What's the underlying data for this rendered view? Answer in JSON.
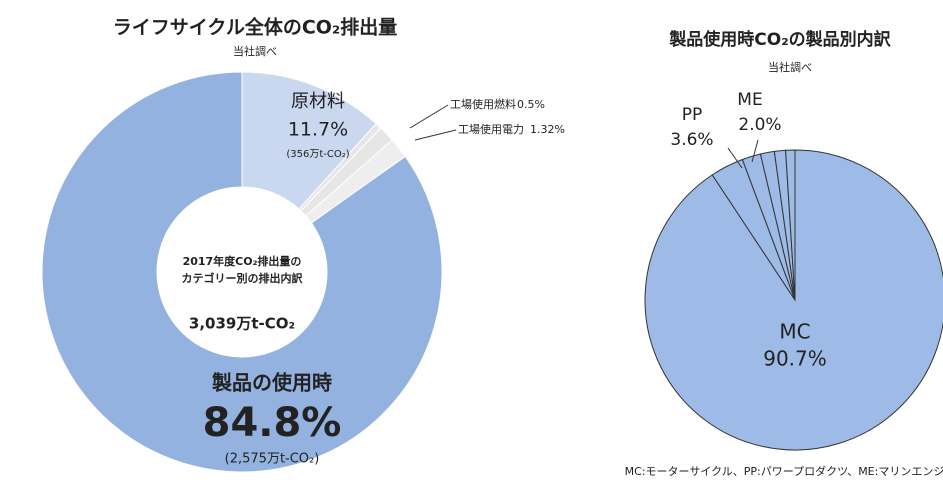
{
  "chart_data": [
    {
      "type": "donut",
      "title": "ライフサイクル全体のCO₂排出量",
      "subtitle": "当社調べ",
      "categories": [
        "原材料",
        "工場使用燃料",
        "工場使用電力",
        null,
        "製品の使用時"
      ],
      "values": [
        11.7,
        0.5,
        1.32,
        1.68,
        84.8
      ],
      "value_labels": [
        "11.7%",
        "0.5%",
        "1.32%",
        null,
        "84.8%"
      ],
      "amounts": [
        "(356万t-CO₂)",
        null,
        null,
        null,
        "(2,575万t-CO₂)"
      ],
      "colors": [
        "#c9d8ef",
        "#e6e6e6",
        "#e6e6e6",
        "#eeeeee",
        "#93b2e0"
      ],
      "center_label": [
        "2017年度CO₂排出量の",
        "カテゴリー別の排出内訳"
      ],
      "center_value": "3,039万t-CO₂"
    },
    {
      "type": "pie",
      "title": "製品使用時CO₂の製品別内訳",
      "subtitle": "当社調べ",
      "categories": [
        "MC",
        "PP",
        "ME",
        null,
        null,
        null
      ],
      "values": [
        90.7,
        3.6,
        2.0,
        1.5,
        1.2,
        1.0
      ],
      "value_labels": [
        "90.7%",
        "3.6%",
        "2.0%",
        null,
        null,
        null
      ],
      "color": "#9dbbe6",
      "footnote": "MC:モーターサイクル、PP:パワープロダクツ、ME:マリンエンジン"
    }
  ]
}
